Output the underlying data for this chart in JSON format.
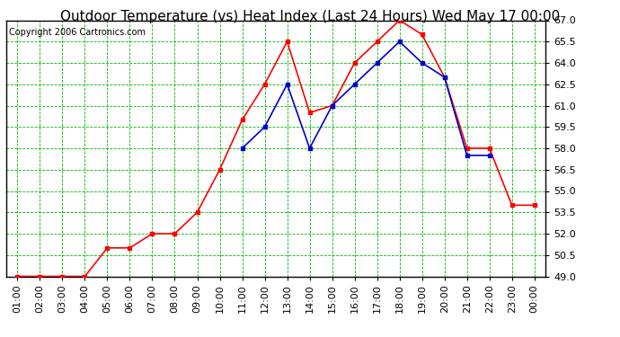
{
  "title": "Outdoor Temperature (vs) Heat Index (Last 24 Hours) Wed May 17 00:00",
  "copyright": "Copyright 2006 Cartronics.com",
  "x_labels": [
    "01:00",
    "02:00",
    "03:00",
    "04:00",
    "05:00",
    "06:00",
    "07:00",
    "08:00",
    "09:00",
    "10:00",
    "11:00",
    "12:00",
    "13:00",
    "14:00",
    "15:00",
    "16:00",
    "17:00",
    "18:00",
    "19:00",
    "20:00",
    "21:00",
    "22:00",
    "23:00",
    "00:00"
  ],
  "temp_red": [
    49.0,
    49.0,
    49.0,
    49.0,
    51.0,
    51.0,
    52.0,
    52.0,
    53.5,
    56.5,
    60.0,
    62.5,
    65.5,
    60.5,
    61.0,
    64.0,
    65.5,
    67.0,
    66.0,
    63.0,
    58.0,
    58.0,
    54.0,
    54.0
  ],
  "temp_blue": [
    null,
    null,
    null,
    null,
    null,
    null,
    null,
    null,
    null,
    null,
    58.0,
    59.5,
    62.5,
    58.0,
    61.0,
    62.5,
    64.0,
    65.5,
    64.0,
    63.0,
    57.5,
    57.5,
    null,
    null
  ],
  "ylim_min": 49.0,
  "ylim_max": 67.0,
  "yticks": [
    49.0,
    50.5,
    52.0,
    53.5,
    55.0,
    56.5,
    58.0,
    59.5,
    61.0,
    62.5,
    64.0,
    65.5,
    67.0
  ],
  "red_color": "#ff0000",
  "blue_color": "#0000cc",
  "green_grid_major_color": "#00bb00",
  "green_grid_minor_color": "#00bb00",
  "bg_color": "#ffffff",
  "plot_bg_color": "#ffffff",
  "title_fontsize": 11,
  "copyright_fontsize": 7,
  "tick_fontsize": 8,
  "marker": "s",
  "marker_size": 3,
  "line_width": 1.2
}
